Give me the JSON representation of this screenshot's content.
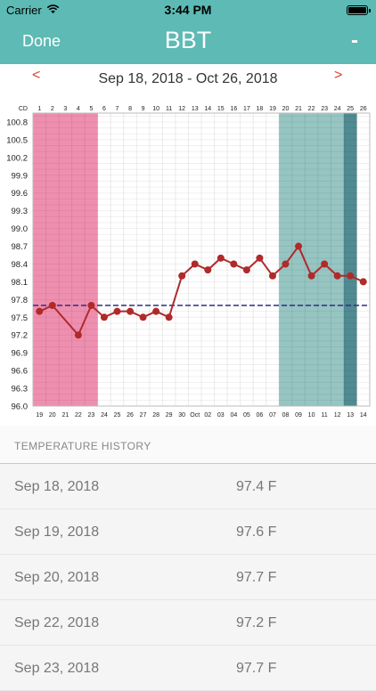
{
  "status_bar": {
    "carrier": "Carrier",
    "time": "3:44 PM"
  },
  "nav": {
    "done_label": "Done",
    "title": "BBT",
    "minus_label": "-"
  },
  "date_range": {
    "prev_label": "<",
    "next_label": ">",
    "text": "Sep 18, 2018 - Oct 26, 2018"
  },
  "history": {
    "header": "TEMPERATURE HISTORY",
    "rows": [
      {
        "date": "Sep 18, 2018",
        "temp": "97.4 F"
      },
      {
        "date": "Sep 19, 2018",
        "temp": "97.6 F"
      },
      {
        "date": "Sep 20, 2018",
        "temp": "97.7 F"
      },
      {
        "date": "Sep 22, 2018",
        "temp": "97.2 F"
      },
      {
        "date": "Sep 23, 2018",
        "temp": "97.7 F"
      }
    ]
  },
  "colors": {
    "nav_bg": "#5dbab4",
    "period_band": "#ef8fb0",
    "fertile_band": "#96c5c2",
    "ovulation_band": "#4f8b91",
    "line": "#b02a2a",
    "coverline": "#2e2e86",
    "arrow": "#d9412f"
  },
  "chart_data": {
    "type": "line",
    "cd_label": "CD",
    "cycle_days": [
      "1",
      "2",
      "3",
      "4",
      "5",
      "6",
      "7",
      "8",
      "9",
      "10",
      "11",
      "12",
      "13",
      "14",
      "15",
      "16",
      "17",
      "18",
      "19",
      "20",
      "21",
      "22",
      "23",
      "24",
      "25",
      "26"
    ],
    "dates": [
      "19",
      "20",
      "21",
      "22",
      "23",
      "24",
      "25",
      "26",
      "27",
      "28",
      "29",
      "30",
      "Oct",
      "02",
      "03",
      "04",
      "05",
      "06",
      "07",
      "08",
      "09",
      "10",
      "11",
      "12",
      "13",
      "14"
    ],
    "y_ticks": [
      "100.8",
      "100.5",
      "100.2",
      "99.9",
      "99.6",
      "99.3",
      "99.0",
      "98.7",
      "98.4",
      "98.1",
      "97.8",
      "97.5",
      "97.2",
      "96.9",
      "96.6",
      "96.3",
      "96.0"
    ],
    "ylim": [
      96.0,
      100.95
    ],
    "values": [
      97.6,
      97.7,
      null,
      97.2,
      97.7,
      97.5,
      97.6,
      97.6,
      97.5,
      97.6,
      97.5,
      98.2,
      98.4,
      98.3,
      98.5,
      98.4,
      98.3,
      98.5,
      98.2,
      98.4,
      98.7,
      98.2,
      98.4,
      98.2,
      98.2,
      98.1
    ],
    "coverline": 97.7,
    "period_days": [
      1,
      5
    ],
    "fertile_days": [
      20,
      25
    ],
    "ovulation_day": 25,
    "grid": true
  }
}
